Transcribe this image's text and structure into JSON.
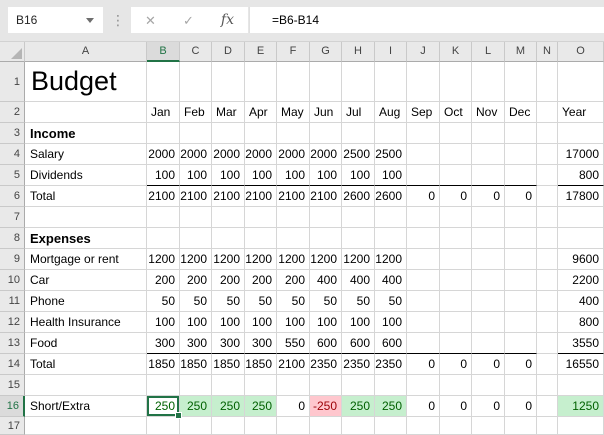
{
  "name_box": {
    "value": "B16"
  },
  "formula_bar": {
    "value": "=B6-B14",
    "cancel_label": "✕",
    "enter_label": "✓",
    "fx_label": "fx"
  },
  "colors": {
    "selection_green": "#217346",
    "good_bg": "#C6EFCE",
    "good_text": "#006100",
    "bad_bg": "#FFC7CE",
    "bad_text": "#9C0006"
  },
  "sheet": {
    "column_headers": [
      "A",
      "B",
      "C",
      "D",
      "E",
      "F",
      "G",
      "H",
      "I",
      "J",
      "K",
      "L",
      "M",
      "N",
      "O"
    ],
    "selected_column": "B",
    "selected_row": "16",
    "selected_cell": "B16",
    "rows": [
      {
        "n": "1",
        "label": "Budget",
        "style": "title",
        "cells": [
          "",
          "",
          "",
          "",
          "",
          "",
          "",
          "",
          "",
          "",
          "",
          ""
        ],
        "year": ""
      },
      {
        "n": "2",
        "label": "",
        "text_cells": true,
        "cells": [
          "Jan",
          "Feb",
          "Mar",
          "Apr",
          "May",
          "Jun",
          "Jul",
          "Aug",
          "Sep",
          "Oct",
          "Nov",
          "Dec"
        ],
        "year": "Year"
      },
      {
        "n": "3",
        "label": "Income",
        "style": "section",
        "cells": [
          "",
          "",
          "",
          "",
          "",
          "",
          "",
          "",
          "",
          "",
          "",
          ""
        ],
        "year": ""
      },
      {
        "n": "4",
        "label": "Salary",
        "cells": [
          "2000",
          "2000",
          "2000",
          "2000",
          "2000",
          "2000",
          "2500",
          "2500",
          "",
          "",
          "",
          ""
        ],
        "year": "17000"
      },
      {
        "n": "5",
        "label": "Dividends",
        "underline": true,
        "cells": [
          "100",
          "100",
          "100",
          "100",
          "100",
          "100",
          "100",
          "100",
          "",
          "",
          "",
          ""
        ],
        "year": "800"
      },
      {
        "n": "6",
        "label": "Total",
        "cells": [
          "2100",
          "2100",
          "2100",
          "2100",
          "2100",
          "2100",
          "2600",
          "2600",
          "0",
          "0",
          "0",
          "0"
        ],
        "year": "17800"
      },
      {
        "n": "7",
        "label": "",
        "cells": [
          "",
          "",
          "",
          "",
          "",
          "",
          "",
          "",
          "",
          "",
          "",
          ""
        ],
        "year": ""
      },
      {
        "n": "8",
        "label": "Expenses",
        "style": "section",
        "cells": [
          "",
          "",
          "",
          "",
          "",
          "",
          "",
          "",
          "",
          "",
          "",
          ""
        ],
        "year": ""
      },
      {
        "n": "9",
        "label": "Mortgage or rent",
        "cells": [
          "1200",
          "1200",
          "1200",
          "1200",
          "1200",
          "1200",
          "1200",
          "1200",
          "",
          "",
          "",
          ""
        ],
        "year": "9600"
      },
      {
        "n": "10",
        "label": "Car",
        "cells": [
          "200",
          "200",
          "200",
          "200",
          "200",
          "400",
          "400",
          "400",
          "",
          "",
          "",
          ""
        ],
        "year": "2200"
      },
      {
        "n": "11",
        "label": "Phone",
        "cells": [
          "50",
          "50",
          "50",
          "50",
          "50",
          "50",
          "50",
          "50",
          "",
          "",
          "",
          ""
        ],
        "year": "400"
      },
      {
        "n": "12",
        "label": "Health Insurance",
        "cells": [
          "100",
          "100",
          "100",
          "100",
          "100",
          "100",
          "100",
          "100",
          "",
          "",
          "",
          ""
        ],
        "year": "800"
      },
      {
        "n": "13",
        "label": "Food",
        "underline": true,
        "cells": [
          "300",
          "300",
          "300",
          "300",
          "550",
          "600",
          "600",
          "600",
          "",
          "",
          "",
          ""
        ],
        "year": "3550"
      },
      {
        "n": "14",
        "label": "Total",
        "cells": [
          "1850",
          "1850",
          "1850",
          "1850",
          "2100",
          "2350",
          "2350",
          "2350",
          "0",
          "0",
          "0",
          "0"
        ],
        "year": "16550"
      },
      {
        "n": "15",
        "label": "",
        "cells": [
          "",
          "",
          "",
          "",
          "",
          "",
          "",
          "",
          "",
          "",
          "",
          ""
        ],
        "year": ""
      },
      {
        "n": "16",
        "label": "Short/Extra",
        "cells": [
          "250",
          "250",
          "250",
          "250",
          "0",
          "-250",
          "250",
          "250",
          "0",
          "0",
          "0",
          "0"
        ],
        "year": "1250",
        "cell_styles": [
          "selected",
          "good",
          "good",
          "good",
          "",
          "bad",
          "good",
          "good",
          "",
          "",
          "",
          ""
        ],
        "year_style": "good"
      },
      {
        "n": "17",
        "label": "",
        "cells": [
          "",
          "",
          "",
          "",
          "",
          "",
          "",
          "",
          "",
          "",
          "",
          ""
        ],
        "year": ""
      }
    ]
  }
}
